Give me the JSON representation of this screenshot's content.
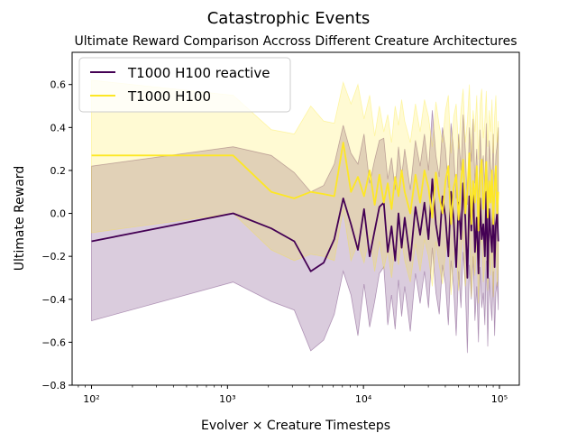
{
  "chart_data": {
    "type": "line",
    "title": "Catastrophic Events",
    "subtitle": "Ultimate Reward Comparison Accross Different Creature Architectures",
    "xlabel": "Evolver × Creature Timesteps",
    "ylabel": "Ultimate Reward",
    "xscale": "log",
    "xlim": [
      72,
      140000
    ],
    "ylim": [
      -0.8,
      0.75
    ],
    "xticks": [
      {
        "value": 100,
        "label": "10²"
      },
      {
        "value": 1000,
        "label": "10³"
      },
      {
        "value": 10000,
        "label": "10⁴"
      },
      {
        "value": 100000,
        "label": "10⁵"
      }
    ],
    "yticks": [
      -0.8,
      -0.6,
      -0.4,
      -0.2,
      0.0,
      0.2,
      0.4,
      0.6
    ],
    "ytick_labels": [
      "−0.8",
      "−0.6",
      "−0.4",
      "−0.2",
      "0.0",
      "0.2",
      "0.4",
      "0.6"
    ],
    "grid": false,
    "legend_position": "top-left",
    "series": [
      {
        "name": "T1000 H100 reactive",
        "color": "#440154",
        "band_opacity": 0.2,
        "x": [
          100,
          1100,
          2100,
          3100,
          4100,
          5100,
          6100,
          7100,
          8100,
          9100,
          10100,
          11100,
          12100,
          13100,
          14100,
          15100,
          16100,
          17100,
          18100,
          19100,
          20100,
          22100,
          24100,
          26100,
          28100,
          30100,
          32100,
          34100,
          36100,
          38100,
          40100,
          42100,
          44100,
          46100,
          48100,
          50100,
          52100,
          54100,
          56100,
          58100,
          60100,
          62100,
          64100,
          66100,
          68100,
          70100,
          72100,
          74100,
          76100,
          78100,
          80100,
          82100,
          84100,
          86100,
          88100,
          90100,
          92100,
          94100,
          96100,
          98100
        ],
        "y": [
          -0.13,
          0.0,
          -0.07,
          -0.13,
          -0.27,
          -0.23,
          -0.12,
          0.07,
          -0.05,
          -0.17,
          0.02,
          -0.2,
          -0.08,
          0.03,
          0.05,
          -0.18,
          -0.06,
          -0.22,
          0.0,
          -0.16,
          -0.02,
          -0.22,
          0.03,
          -0.1,
          0.05,
          -0.12,
          0.16,
          -0.05,
          -0.15,
          0.08,
          -0.02,
          -0.2,
          0.1,
          -0.03,
          -0.25,
          0.05,
          -0.12,
          0.14,
          -0.02,
          -0.3,
          0.08,
          -0.08,
          0.12,
          -0.18,
          -0.02,
          -0.28,
          0.07,
          -0.12,
          -0.05,
          -0.2,
          0.1,
          -0.3,
          0.02,
          -0.1,
          -0.18,
          0.05,
          -0.25,
          -0.05,
          0.0,
          -0.13
        ],
        "lower": [
          -0.5,
          -0.32,
          -0.41,
          -0.45,
          -0.64,
          -0.59,
          -0.47,
          -0.27,
          -0.38,
          -0.57,
          -0.33,
          -0.53,
          -0.41,
          -0.28,
          -0.25,
          -0.52,
          -0.38,
          -0.54,
          -0.31,
          -0.48,
          -0.34,
          -0.55,
          -0.28,
          -0.42,
          -0.27,
          -0.44,
          -0.16,
          -0.37,
          -0.47,
          -0.24,
          -0.33,
          -0.52,
          -0.22,
          -0.35,
          -0.57,
          -0.27,
          -0.44,
          -0.18,
          -0.34,
          -0.65,
          -0.24,
          -0.4,
          -0.2,
          -0.5,
          -0.34,
          -0.6,
          -0.25,
          -0.44,
          -0.37,
          -0.52,
          -0.22,
          -0.62,
          -0.3,
          -0.42,
          -0.5,
          -0.27,
          -0.57,
          -0.37,
          -0.32,
          -0.45
        ],
        "upper": [
          0.22,
          0.31,
          0.27,
          0.19,
          0.1,
          0.13,
          0.23,
          0.41,
          0.28,
          0.23,
          0.37,
          0.14,
          0.25,
          0.34,
          0.35,
          0.16,
          0.26,
          0.11,
          0.31,
          0.17,
          0.3,
          0.11,
          0.34,
          0.22,
          0.37,
          0.2,
          0.48,
          0.27,
          0.17,
          0.4,
          0.3,
          0.12,
          0.42,
          0.29,
          0.07,
          0.37,
          0.2,
          0.46,
          0.3,
          0.04,
          0.4,
          0.24,
          0.44,
          0.14,
          0.3,
          0.04,
          0.39,
          0.2,
          0.27,
          0.12,
          0.42,
          0.02,
          0.34,
          0.22,
          0.14,
          0.37,
          0.07,
          0.27,
          0.32,
          0.4
        ]
      },
      {
        "name": "T1000 H100",
        "color": "#fde725",
        "band_opacity": 0.2,
        "x": [
          100,
          1100,
          2100,
          3100,
          4100,
          5100,
          6100,
          7100,
          8100,
          9100,
          10100,
          11100,
          12100,
          13100,
          14100,
          15100,
          16100,
          17100,
          18100,
          19100,
          20100,
          22100,
          24100,
          26100,
          28100,
          30100,
          32100,
          34100,
          36100,
          38100,
          40100,
          42100,
          44100,
          46100,
          48100,
          50100,
          52100,
          54100,
          56100,
          58100,
          60100,
          62100,
          64100,
          66100,
          68100,
          70100,
          72100,
          74100,
          76100,
          78100,
          80100,
          82100,
          84100,
          86100,
          88100,
          90100,
          92100,
          94100,
          96100,
          98100
        ],
        "y": [
          0.27,
          0.27,
          0.1,
          0.07,
          0.1,
          0.09,
          0.08,
          0.33,
          0.1,
          0.17,
          0.08,
          0.2,
          0.04,
          0.18,
          0.05,
          0.14,
          0.02,
          0.17,
          0.08,
          0.2,
          0.1,
          0.0,
          0.18,
          0.05,
          0.2,
          0.12,
          -0.02,
          0.19,
          0.08,
          0.0,
          0.15,
          0.22,
          -0.05,
          0.12,
          0.18,
          -0.03,
          0.15,
          0.25,
          0.0,
          0.1,
          0.28,
          -0.05,
          0.15,
          0.05,
          0.22,
          -0.08,
          0.18,
          0.25,
          0.02,
          0.1,
          0.24,
          -0.02,
          0.15,
          0.05,
          0.2,
          -0.05,
          0.12,
          0.22,
          0.0,
          0.1
        ],
        "lower": [
          -0.09,
          0.0,
          -0.17,
          -0.22,
          -0.19,
          -0.2,
          -0.22,
          0.02,
          -0.22,
          -0.14,
          -0.23,
          -0.1,
          -0.27,
          -0.13,
          -0.26,
          -0.17,
          -0.3,
          -0.15,
          -0.24,
          -0.12,
          -0.22,
          -0.32,
          -0.14,
          -0.27,
          -0.12,
          -0.2,
          -0.34,
          -0.13,
          -0.24,
          -0.33,
          -0.18,
          -0.11,
          -0.38,
          -0.2,
          -0.15,
          -0.36,
          -0.18,
          -0.08,
          -0.34,
          -0.24,
          -0.06,
          -0.39,
          -0.19,
          -0.29,
          -0.12,
          -0.42,
          -0.16,
          -0.09,
          -0.32,
          -0.24,
          -0.1,
          -0.36,
          -0.19,
          -0.29,
          -0.14,
          -0.39,
          -0.22,
          -0.12,
          -0.34,
          -0.24
        ],
        "upper": [
          0.62,
          0.55,
          0.39,
          0.37,
          0.5,
          0.43,
          0.42,
          0.61,
          0.51,
          0.6,
          0.44,
          0.55,
          0.36,
          0.5,
          0.38,
          0.46,
          0.33,
          0.5,
          0.41,
          0.53,
          0.43,
          0.33,
          0.51,
          0.38,
          0.53,
          0.45,
          0.31,
          0.52,
          0.41,
          0.33,
          0.48,
          0.55,
          0.28,
          0.45,
          0.51,
          0.3,
          0.48,
          0.58,
          0.33,
          0.43,
          0.6,
          0.28,
          0.48,
          0.38,
          0.55,
          0.25,
          0.51,
          0.58,
          0.35,
          0.43,
          0.57,
          0.31,
          0.48,
          0.38,
          0.53,
          0.28,
          0.45,
          0.55,
          0.33,
          0.43
        ]
      }
    ]
  }
}
